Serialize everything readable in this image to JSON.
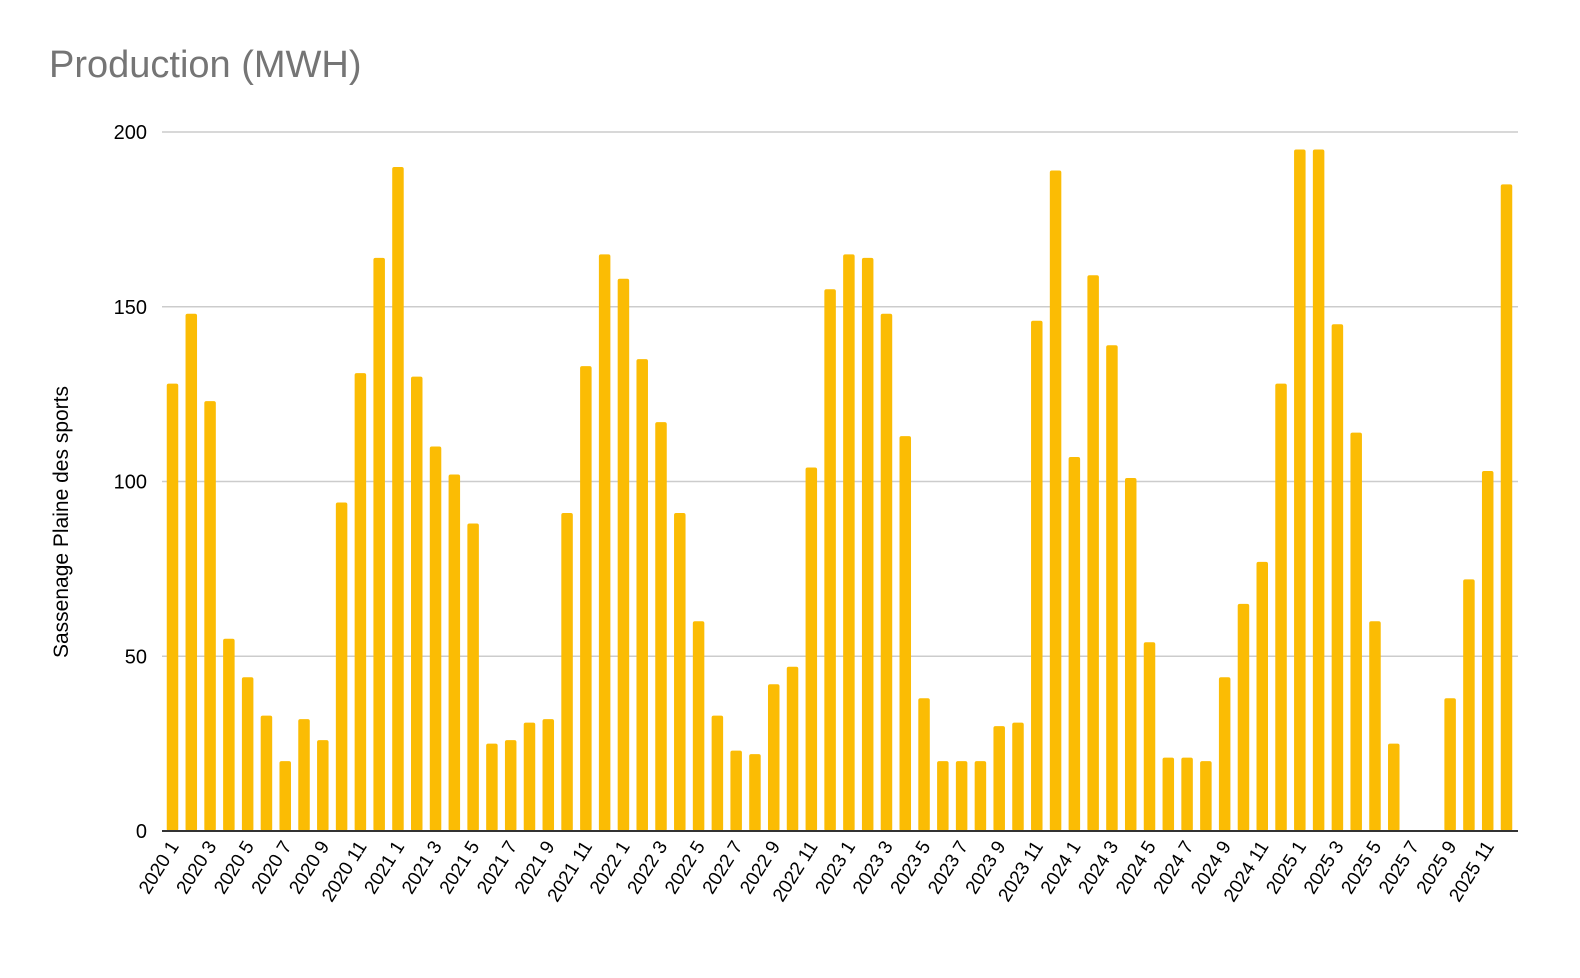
{
  "chart_data": {
    "type": "bar",
    "title": "Production (MWH)",
    "ylabel": "Sassenage Plaine des sports",
    "xlabel": "",
    "ylim": [
      0,
      200
    ],
    "yticks": [
      0,
      50,
      100,
      150,
      200
    ],
    "grid": true,
    "legend": "none",
    "bar_color": "#FBBC04",
    "categories": [
      "2020 1",
      "2020 2",
      "2020 3",
      "2020 4",
      "2020 5",
      "2020 6",
      "2020 7",
      "2020 8",
      "2020 9",
      "2020 10",
      "2020 11",
      "2020 12",
      "2021 1",
      "2021 2",
      "2021 3",
      "2021 4",
      "2021 5",
      "2021 6",
      "2021 7",
      "2021 8",
      "2021 9",
      "2021 10",
      "2021 11",
      "2021 12",
      "2022 1",
      "2022 2",
      "2022 3",
      "2022 4",
      "2022 5",
      "2022 6",
      "2022 7",
      "2022 8",
      "2022 9",
      "2022 10",
      "2022 11",
      "2022 12",
      "2023 1",
      "2023 2",
      "2023 3",
      "2023 4",
      "2023 5",
      "2023 6",
      "2023 7",
      "2023 8",
      "2023 9",
      "2023 10",
      "2023 11",
      "2023 12",
      "2024 1",
      "2024 2",
      "2024 3",
      "2024 4",
      "2024 5",
      "2024 6",
      "2024 7",
      "2024 8",
      "2024 9",
      "2024 10",
      "2024 11",
      "2024 12",
      "2025 1",
      "2025 2",
      "2025 3",
      "2025 4",
      "2025 5",
      "2025 6",
      "2025 7",
      "2025 8",
      "2025 9",
      "2025 10",
      "2025 11",
      "2025 12"
    ],
    "tick_labels_shown": [
      "2020 1",
      "2020 3",
      "2020 5",
      "2020 7",
      "2020 9",
      "2020 11",
      "2021 1",
      "2021 3",
      "2021 5",
      "2021 7",
      "2021 9",
      "2021 11",
      "2022 1",
      "2022 3",
      "2022 5",
      "2022 7",
      "2022 9",
      "2022 11",
      "2023 1",
      "2023 3",
      "2023 5",
      "2023 7",
      "2023 9",
      "2023 11",
      "2024 1",
      "2024 3",
      "2024 5",
      "2024 7",
      "2024 9",
      "2024 11",
      "2025 1",
      "2025 3",
      "2025 5",
      "2025 7",
      "2025 9",
      "2025 11"
    ],
    "values": [
      128,
      148,
      123,
      55,
      44,
      33,
      20,
      32,
      26,
      94,
      131,
      164,
      190,
      130,
      110,
      102,
      88,
      25,
      26,
      31,
      32,
      91,
      133,
      165,
      158,
      135,
      117,
      91,
      60,
      33,
      23,
      22,
      42,
      47,
      104,
      155,
      165,
      164,
      148,
      113,
      38,
      20,
      20,
      20,
      30,
      31,
      146,
      189,
      107,
      159,
      139,
      101,
      54,
      21,
      21,
      20,
      44,
      65,
      77,
      128,
      195,
      195,
      145,
      114,
      60,
      25,
      0,
      0,
      38,
      72,
      103,
      185
    ]
  }
}
